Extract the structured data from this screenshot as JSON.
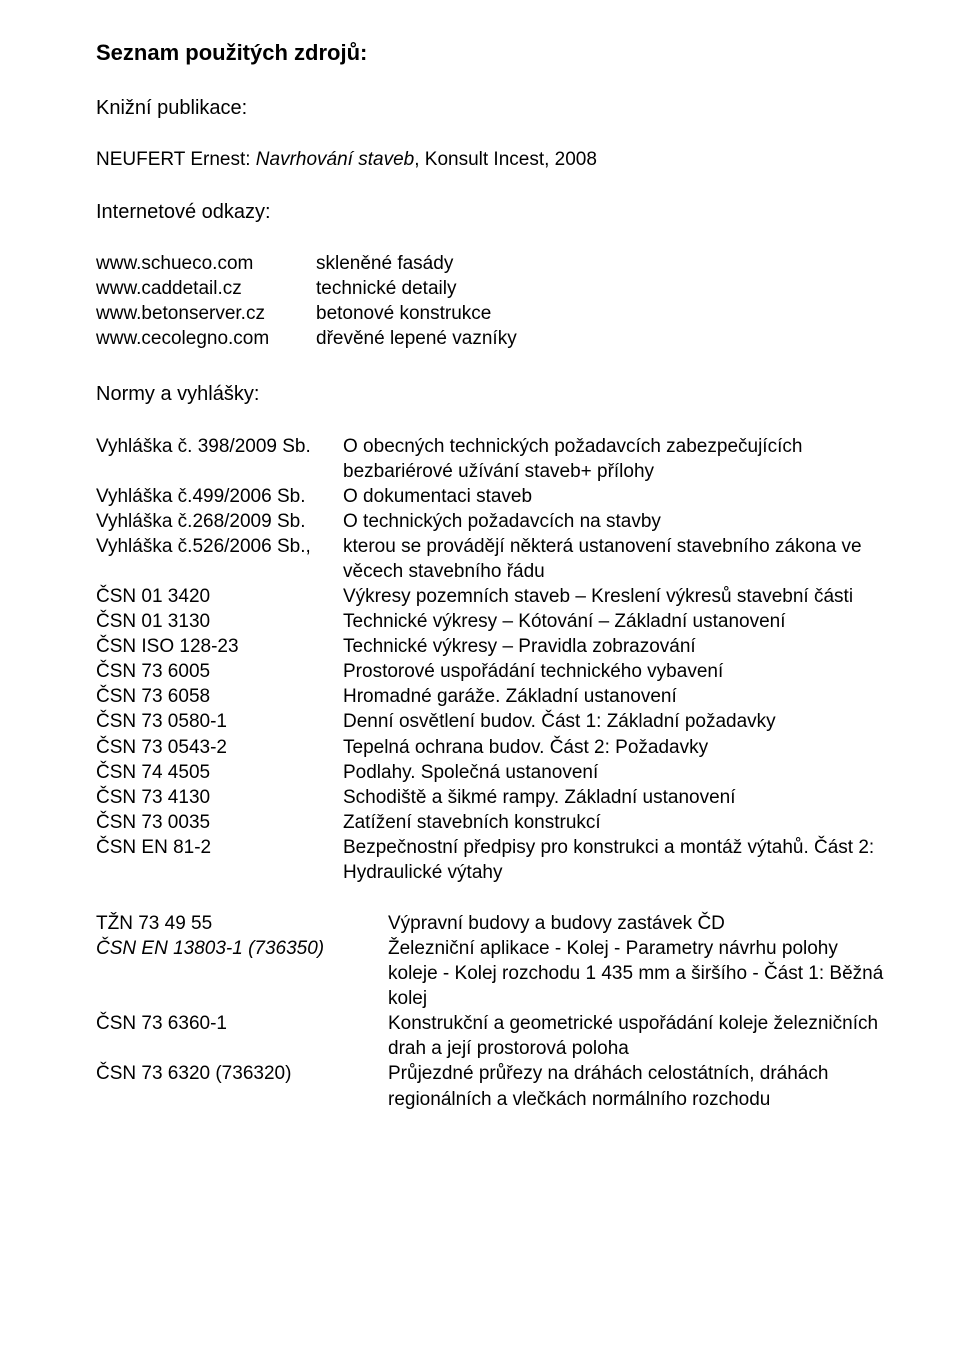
{
  "title": "Seznam použitých zdrojů:",
  "sections": {
    "books_label": "Knižní publikace:",
    "book_entry_prefix": "NEUFERT Ernest: ",
    "book_entry_italic": "Navrhování staveb",
    "book_entry_suffix": ", Konsult Incest, 2008",
    "links_label": "Internetové odkazy:",
    "links": [
      {
        "url": "www.schueco.com",
        "desc": "skleněné fasády"
      },
      {
        "url": "www.caddetail.cz",
        "desc": "technické detaily"
      },
      {
        "url": "www.betonserver.cz",
        "desc": "betonové konstrukce"
      },
      {
        "url": "www.cecolegno.com",
        "desc": "dřevěné lepené vazníky"
      }
    ],
    "norms_label": "Normy a vyhlášky:",
    "norms": [
      {
        "code": "Vyhláška č. 398/2009 Sb.",
        "desc": "O obecných technických požadavcích zabezpečujících bezbariérové užívání staveb+ přílohy"
      },
      {
        "code": "Vyhláška č.499/2006 Sb.",
        "desc": "O dokumentaci staveb"
      },
      {
        "code": "Vyhláška č.268/2009 Sb.",
        "desc": "O technických požadavcích na stavby"
      },
      {
        "code": "Vyhláška č.526/2006 Sb.,",
        "desc": "kterou se provádějí některá ustanovení stavebního zákona ve věcech stavebního řádu"
      },
      {
        "code": "ČSN 01 3420",
        "desc": "Výkresy pozemních staveb – Kreslení výkresů stavební části"
      },
      {
        "code": "ČSN 01 3130",
        "desc": "Technické výkresy – Kótování – Základní ustanovení"
      },
      {
        "code": "ČSN ISO 128-23",
        "desc": "Technické výkresy – Pravidla zobrazování"
      },
      {
        "code": "ČSN 73 6005",
        "desc": "Prostorové uspořádání technického vybavení"
      },
      {
        "code": "ČSN 73 6058",
        "desc": "Hromadné garáže. Základní ustanovení"
      },
      {
        "code": "ČSN 73 0580-1",
        "desc": "Denní osvětlení budov. Část 1: Základní požadavky"
      },
      {
        "code": "ČSN 73 0543-2",
        "desc": "Tepelná ochrana budov. Část 2: Požadavky"
      },
      {
        "code": "ČSN 74 4505",
        "desc": "Podlahy. Společná ustanovení"
      },
      {
        "code": "ČSN 73 4130",
        "desc": "Schodiště a šikmé rampy. Základní ustanovení"
      },
      {
        "code": "ČSN 73 0035",
        "desc": "Zatížení stavebních konstrukcí"
      },
      {
        "code": "ČSN EN 81-2",
        "desc": "Bezpečnostní předpisy pro konstrukci a montáž výtahů. Část 2:  Hydraulické výtahy"
      }
    ],
    "norms2": [
      {
        "code": "TŽN 73 49 55",
        "code_italic": false,
        "desc": "Výpravní budovy a budovy zastávek ČD"
      },
      {
        "code": "ČSN EN 13803-1 (736350)",
        "code_italic": true,
        "desc": "Železniční aplikace - Kolej - Parametry návrhu polohy koleje - Kolej rozchodu 1 435 mm a širšího - Část 1: Běžná kolej"
      },
      {
        "code": "ČSN 73 6360-1",
        "code_italic": false,
        "desc": "Konstrukční a geometrické uspořádání koleje železničních drah a její prostorová poloha"
      },
      {
        "code": "ČSN 73 6320 (736320)",
        "code_italic": false,
        "desc": "Průjezdné průřezy na dráhách celostátních, dráhách regionálních a vlečkách normálního rozchodu"
      }
    ]
  }
}
